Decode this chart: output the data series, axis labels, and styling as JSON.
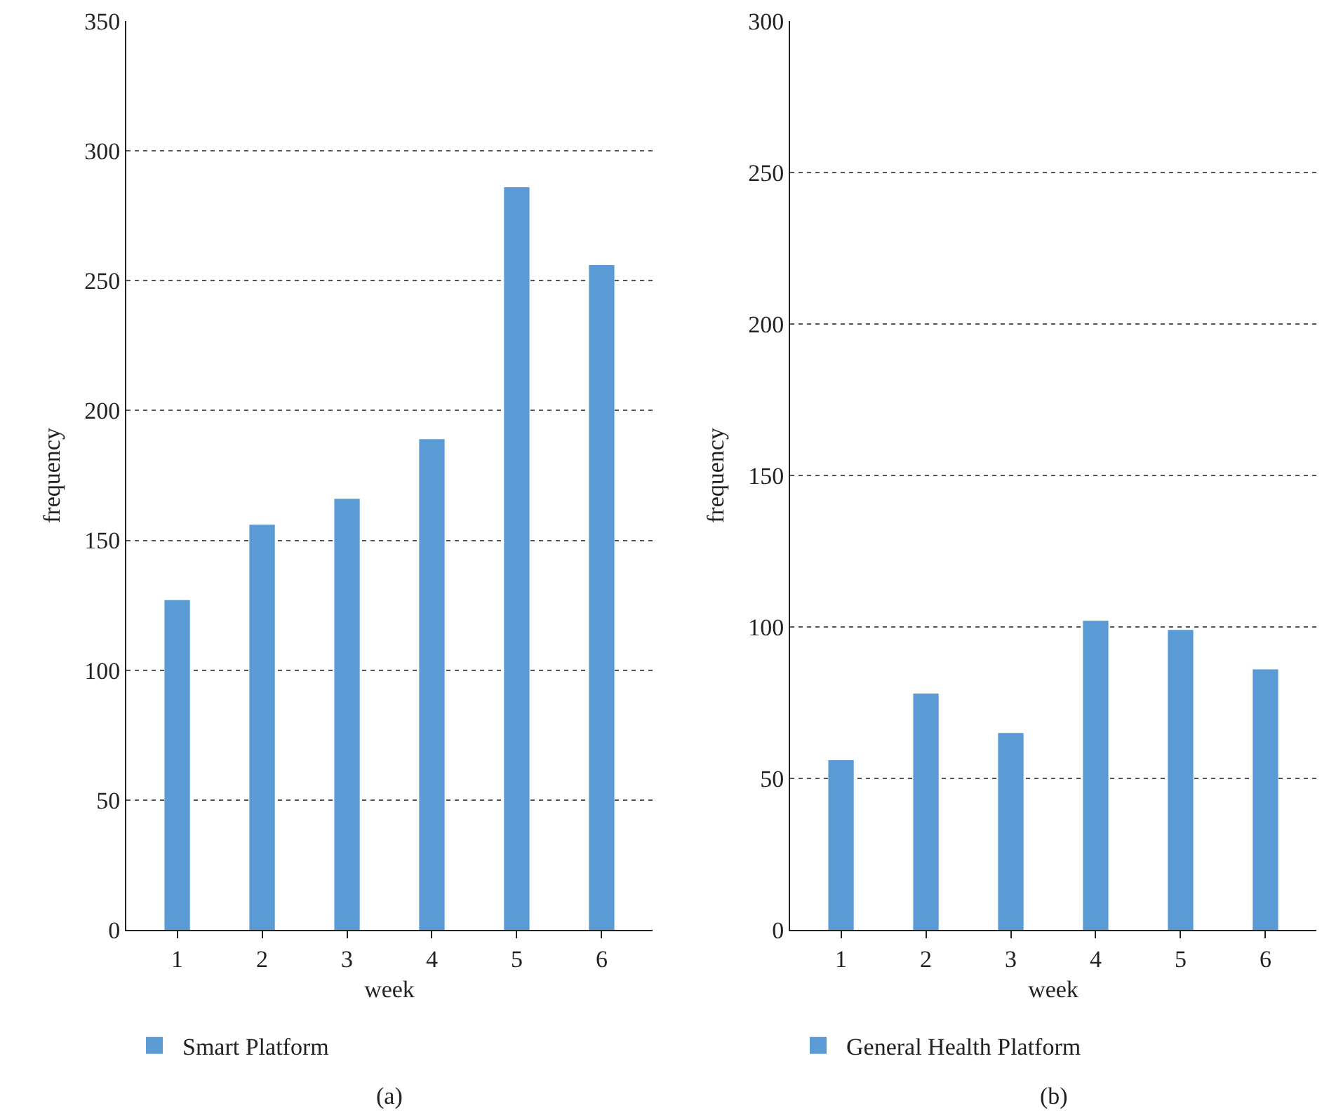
{
  "chart_data": [
    {
      "type": "bar",
      "xlabel": "week",
      "ylabel": "frequency",
      "categories": [
        "1",
        "2",
        "3",
        "4",
        "5",
        "6"
      ],
      "series": [
        {
          "name": "Smart Platform",
          "color": "#5b9bd5",
          "values": [
            127,
            156,
            166,
            189,
            286,
            256
          ]
        }
      ],
      "ylim": [
        0,
        350
      ],
      "yticks": [
        0,
        50,
        100,
        150,
        200,
        250,
        300,
        350
      ],
      "grid": "y",
      "legend": "bottom left",
      "annotations": [
        "(a)"
      ]
    },
    {
      "type": "bar",
      "xlabel": "week",
      "ylabel": "frequency",
      "categories": [
        "1",
        "2",
        "3",
        "4",
        "5",
        "6"
      ],
      "series": [
        {
          "name": "General Health Platform",
          "color": "#5b9bd5",
          "values": [
            56,
            78,
            65,
            102,
            99,
            86
          ]
        }
      ],
      "ylim": [
        0,
        300
      ],
      "yticks": [
        0,
        50,
        100,
        150,
        200,
        250,
        300
      ],
      "grid": "y",
      "legend": "bottom left",
      "annotations": [
        "(b)"
      ]
    }
  ]
}
